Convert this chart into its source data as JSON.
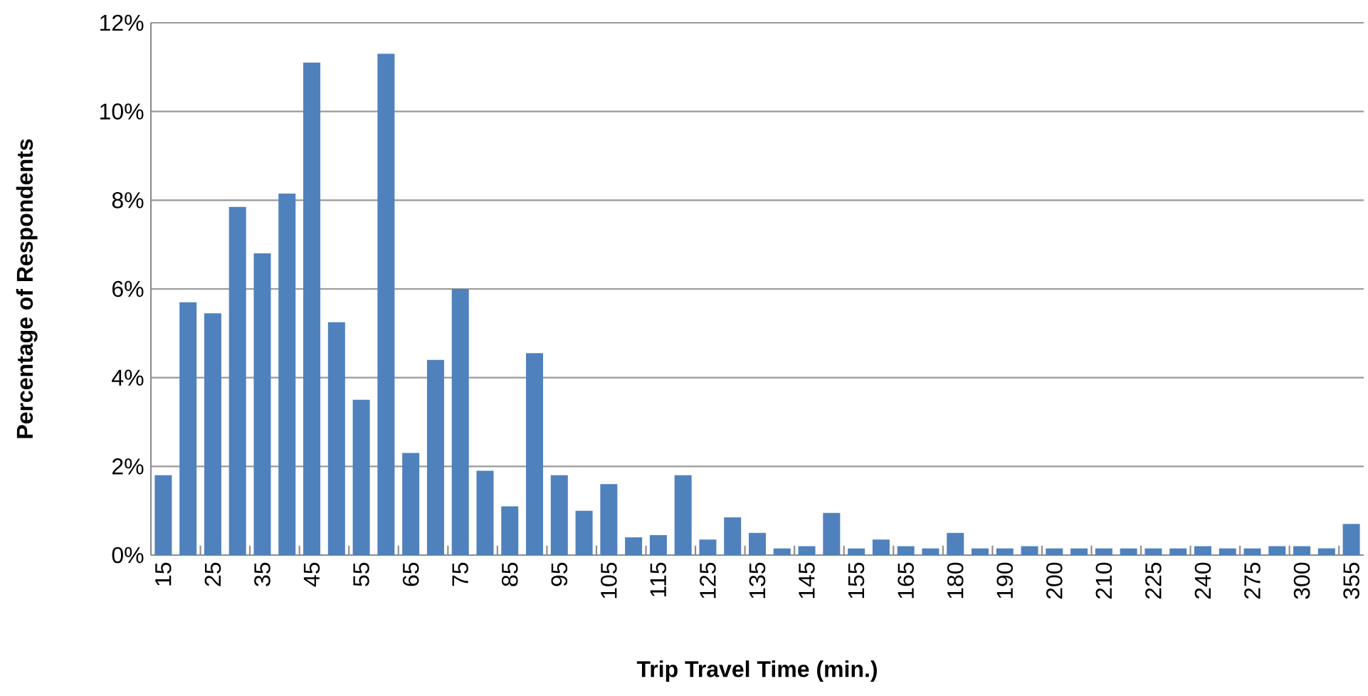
{
  "chart_data": {
    "type": "bar",
    "xlabel": "Trip Travel Time (min.)",
    "ylabel": "Percentage of Respondents",
    "categories": [
      "15",
      null,
      "25",
      null,
      "35",
      null,
      "45",
      null,
      "55",
      null,
      "65",
      null,
      "75",
      null,
      "85",
      null,
      "95",
      null,
      "105",
      null,
      "115",
      null,
      "125",
      null,
      "135",
      null,
      "145",
      null,
      "155",
      null,
      "165",
      null,
      "180",
      null,
      "190",
      null,
      "200",
      null,
      "210",
      null,
      "225",
      null,
      "240",
      null,
      "275",
      null,
      "300",
      null,
      "355"
    ],
    "values": [
      1.8,
      5.7,
      5.45,
      7.85,
      6.8,
      8.15,
      11.1,
      5.25,
      3.5,
      11.3,
      2.3,
      4.4,
      6.0,
      1.9,
      1.1,
      4.55,
      1.8,
      1.0,
      1.6,
      0.4,
      0.45,
      1.8,
      0.35,
      0.85,
      0.5,
      0.15,
      0.2,
      0.95,
      0.15,
      0.35,
      0.2,
      0.15,
      0.5,
      0.15,
      0.15,
      0.2,
      0.15,
      0.15,
      0.15,
      0.15,
      0.15,
      0.15,
      0.2,
      0.15,
      0.15,
      0.2,
      0.2,
      0.15,
      0.7
    ],
    "color": "#4f81bd",
    "ylim": [
      0,
      12
    ],
    "yticks": [
      {
        "value": 0,
        "label": "0%"
      },
      {
        "value": 2,
        "label": "2%"
      },
      {
        "value": 4,
        "label": "4%"
      },
      {
        "value": 6,
        "label": "6%"
      },
      {
        "value": 8,
        "label": "8%"
      },
      {
        "value": 10,
        "label": "10%"
      },
      {
        "value": 12,
        "label": "12%"
      }
    ],
    "grid": "y"
  }
}
